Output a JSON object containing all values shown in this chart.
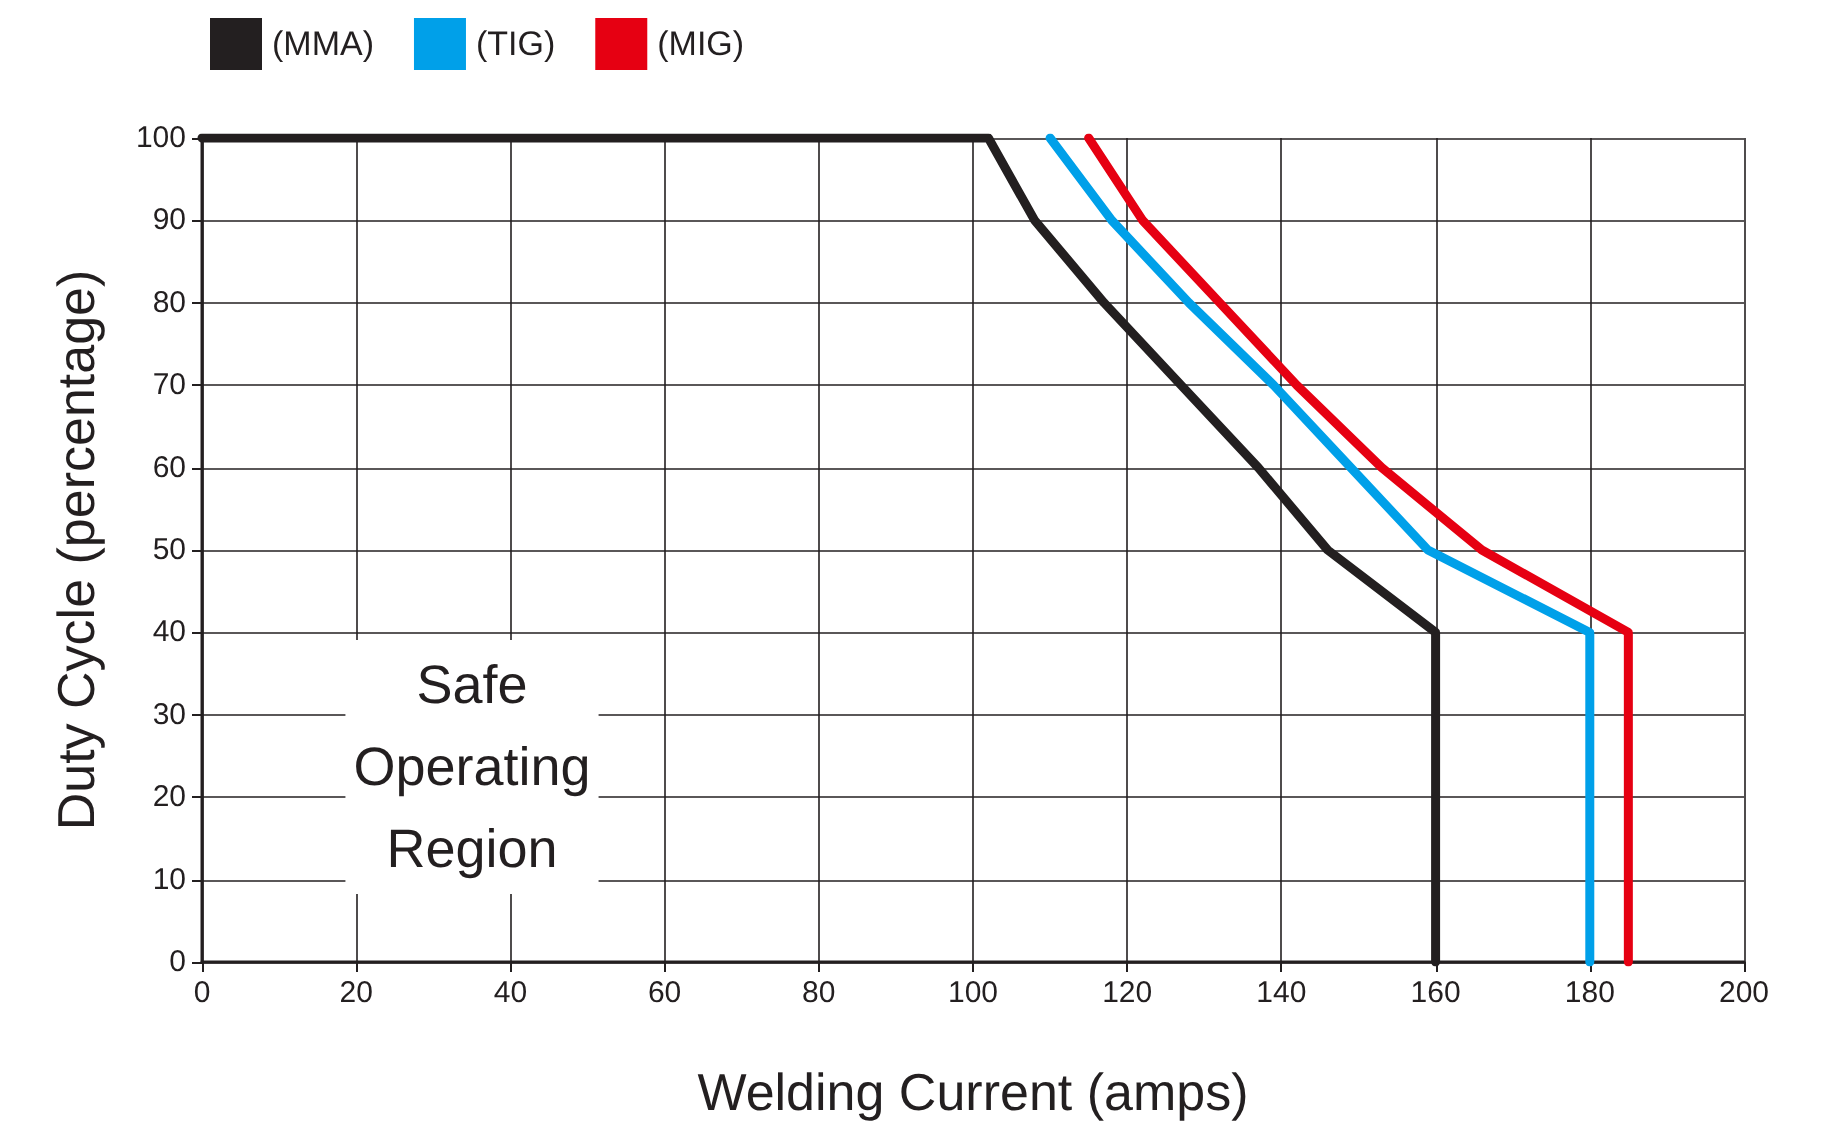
{
  "chart_data": {
    "type": "line",
    "xlabel": "Welding Current (amps)",
    "ylabel": "Duty Cycle (percentage)",
    "xlim": [
      0,
      200
    ],
    "xticks": [
      0,
      20,
      40,
      60,
      80,
      100,
      120,
      140,
      160,
      180,
      200
    ],
    "ylim": [
      0,
      100
    ],
    "yticks": [
      0,
      10,
      20,
      30,
      40,
      50,
      60,
      70,
      80,
      90,
      100
    ],
    "grid": true,
    "legend": "top left",
    "marker": "none",
    "line_style": "solid",
    "annotations": [
      "Safe\nOperating\nRegion"
    ],
    "series": [
      {
        "name": "(MMA)",
        "color": "#231f20",
        "x": [
          0,
          102,
          108,
          117,
          127,
          137,
          146,
          160,
          160
        ],
        "values": [
          100,
          100,
          90,
          80,
          70,
          60,
          50,
          40,
          0
        ]
      },
      {
        "name": "(TIG)",
        "color": "#00a0e9",
        "x": [
          110,
          118,
          128,
          139,
          149,
          159,
          180,
          180
        ],
        "values": [
          100,
          90,
          80,
          70,
          60,
          50,
          40,
          0
        ]
      },
      {
        "name": "(MIG)",
        "color": "#e60012",
        "x": [
          115,
          122,
          132,
          142,
          153,
          166,
          185,
          185
        ],
        "values": [
          100,
          90,
          80,
          70,
          60,
          50,
          40,
          0
        ]
      }
    ]
  }
}
